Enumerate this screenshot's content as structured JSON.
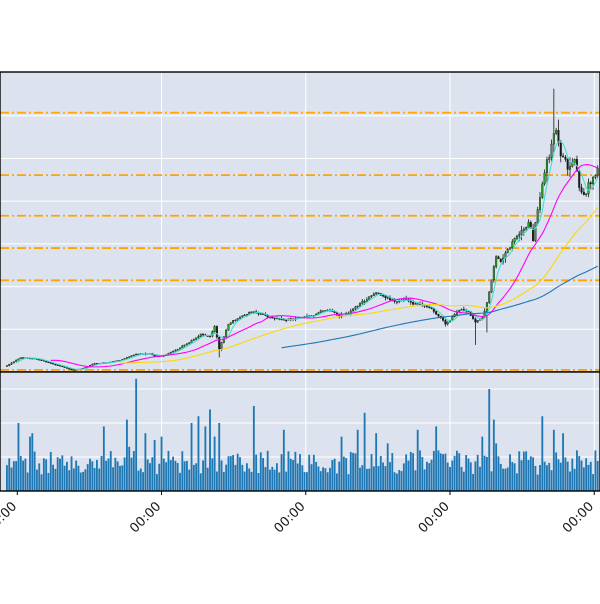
{
  "chart_data": {
    "type": "candlestick",
    "title": "",
    "xlabel": "",
    "ylabel": "",
    "grid": true,
    "legend": "none",
    "x_tick_labels": [
      "00:00",
      "00:00",
      "00:00",
      "00:00",
      "00:00"
    ],
    "x_tick_positions": [
      4.5,
      67,
      129.5,
      192,
      254.5
    ],
    "x_range": [
      -3,
      257
    ],
    "price_panel": {
      "ylim": [
        0.9,
        15.3
      ],
      "horizontal_gridlines": [
        2.95,
        5.0,
        7.05,
        9.1,
        11.15,
        13.2
      ],
      "vertical_gridlines": [
        67,
        129.5,
        192,
        254.5
      ],
      "support_resistance_levels": [
        1.0,
        5.3,
        6.85,
        8.4,
        10.35,
        13.35
      ],
      "moving_average_series": [
        {
          "key": "ma_short",
          "window": 5,
          "color": "#40e0d0"
        },
        {
          "key": "ma_mid",
          "window": 20,
          "color": "#ff00ff"
        },
        {
          "key": "ma_long",
          "window": 50,
          "color": "#ffd700"
        },
        {
          "key": "ma_longest",
          "window": 120,
          "color": "#1f77b4"
        }
      ],
      "candle_up_color": "#1a1a1a",
      "candle_down_color": "#1a1a1a",
      "close_anchors": [
        [
          0,
          1.2
        ],
        [
          6,
          1.6
        ],
        [
          12,
          1.55
        ],
        [
          18,
          1.35
        ],
        [
          24,
          1.15
        ],
        [
          28,
          1.0
        ],
        [
          32,
          1.05
        ],
        [
          38,
          1.3
        ],
        [
          44,
          1.35
        ],
        [
          50,
          1.5
        ],
        [
          56,
          1.75
        ],
        [
          62,
          1.8
        ],
        [
          64,
          1.65
        ],
        [
          68,
          1.7
        ],
        [
          74,
          2.0
        ],
        [
          80,
          2.4
        ],
        [
          84,
          2.7
        ],
        [
          88,
          2.6
        ],
        [
          90,
          3.1
        ],
        [
          92,
          2.0
        ],
        [
          96,
          3.2
        ],
        [
          100,
          3.5
        ],
        [
          106,
          3.8
        ],
        [
          110,
          3.7
        ],
        [
          114,
          3.5
        ],
        [
          120,
          3.4
        ],
        [
          126,
          3.5
        ],
        [
          132,
          3.6
        ],
        [
          136,
          3.8
        ],
        [
          140,
          3.85
        ],
        [
          144,
          3.6
        ],
        [
          148,
          3.7
        ],
        [
          152,
          4.1
        ],
        [
          156,
          4.4
        ],
        [
          160,
          4.7
        ],
        [
          164,
          4.5
        ],
        [
          168,
          4.3
        ],
        [
          172,
          4.4
        ],
        [
          176,
          4.2
        ],
        [
          180,
          4.1
        ],
        [
          184,
          3.9
        ],
        [
          188,
          3.5
        ],
        [
          190,
          3.2
        ],
        [
          192,
          3.4
        ],
        [
          196,
          3.9
        ],
        [
          200,
          3.8
        ],
        [
          203,
          3.3
        ],
        [
          206,
          3.5
        ],
        [
          208,
          4.2
        ],
        [
          210,
          5.3
        ],
        [
          212,
          6.5
        ],
        [
          214,
          6.2
        ],
        [
          218,
          6.9
        ],
        [
          222,
          7.6
        ],
        [
          226,
          8.1
        ],
        [
          228,
          7.3
        ],
        [
          230,
          8.6
        ],
        [
          234,
          11.0
        ],
        [
          236,
          11.6
        ],
        [
          238,
          12.8
        ],
        [
          240,
          11.5
        ],
        [
          242,
          10.9
        ],
        [
          244,
          10.8
        ],
        [
          246,
          11.2
        ],
        [
          248,
          9.8
        ],
        [
          250,
          9.4
        ],
        [
          254,
          10.2
        ],
        [
          256,
          10.8
        ]
      ],
      "extreme_wicks": [
        {
          "index": 92,
          "low": 1.6
        },
        {
          "index": 203,
          "low": 2.2
        },
        {
          "index": 208,
          "low": 2.8
        },
        {
          "index": 237,
          "high": 14.5
        }
      ]
    },
    "volume_panel": {
      "ylim": [
        0,
        3.5
      ],
      "horizontal_gridlines": [
        1.0,
        2.0,
        3.0
      ],
      "bar_color": "#1f77b4",
      "base_level": 0.8,
      "spikes": [
        {
          "index": 5,
          "value": 2.0
        },
        {
          "index": 10,
          "value": 1.6
        },
        {
          "index": 11,
          "value": 1.7
        },
        {
          "index": 23,
          "value": 0.95
        },
        {
          "index": 42,
          "value": 1.9
        },
        {
          "index": 52,
          "value": 2.1
        },
        {
          "index": 53,
          "value": 1.3
        },
        {
          "index": 56,
          "value": 3.3
        },
        {
          "index": 60,
          "value": 1.7
        },
        {
          "index": 64,
          "value": 1.5
        },
        {
          "index": 67,
          "value": 1.6
        },
        {
          "index": 80,
          "value": 2.0
        },
        {
          "index": 83,
          "value": 2.2
        },
        {
          "index": 86,
          "value": 1.9
        },
        {
          "index": 88,
          "value": 2.4
        },
        {
          "index": 90,
          "value": 1.6
        },
        {
          "index": 92,
          "value": 2.0
        },
        {
          "index": 107,
          "value": 2.5
        },
        {
          "index": 120,
          "value": 1.8
        },
        {
          "index": 145,
          "value": 1.6
        },
        {
          "index": 152,
          "value": 1.8
        },
        {
          "index": 155,
          "value": 2.3
        },
        {
          "index": 160,
          "value": 1.7
        },
        {
          "index": 165,
          "value": 1.4
        },
        {
          "index": 178,
          "value": 1.8
        },
        {
          "index": 186,
          "value": 1.9
        },
        {
          "index": 206,
          "value": 1.6
        },
        {
          "index": 209,
          "value": 3.0
        },
        {
          "index": 211,
          "value": 2.1
        },
        {
          "index": 212,
          "value": 1.4
        },
        {
          "index": 232,
          "value": 2.2
        },
        {
          "index": 237,
          "value": 1.8
        },
        {
          "index": 241,
          "value": 1.7
        }
      ]
    }
  }
}
